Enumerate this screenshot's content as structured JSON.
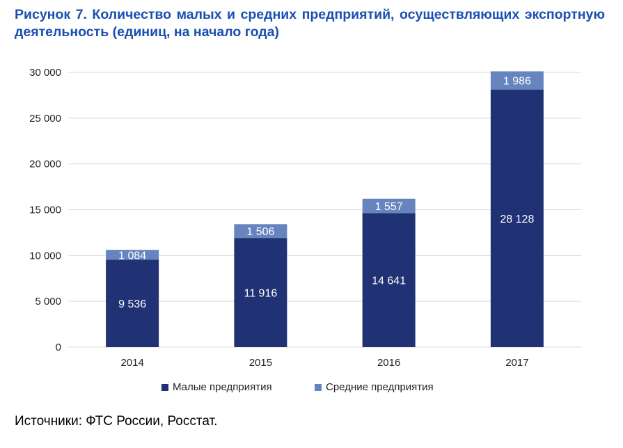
{
  "chart_data": {
    "type": "bar",
    "stacked": true,
    "title": "Рисунок 7. Количество малых и средних предприятий, осуществляющих экспортную деятельность (единиц, на начало года)",
    "categories": [
      "2014",
      "2015",
      "2016",
      "2017"
    ],
    "series": [
      {
        "name": "Малые предприятия",
        "values": [
          9536,
          11916,
          14641,
          28128
        ],
        "color": "#203174",
        "labels": [
          "9 536",
          "11 916",
          "14 641",
          "28 128"
        ]
      },
      {
        "name": "Средние предприятия",
        "values": [
          1084,
          1506,
          1557,
          1986
        ],
        "color": "#6684be",
        "labels": [
          "1 084",
          "1 506",
          "1 557",
          "1 986"
        ]
      }
    ],
    "ylim": [
      0,
      30000
    ],
    "yticks": [
      0,
      5000,
      10000,
      15000,
      20000,
      25000,
      30000
    ],
    "ytick_labels": [
      "0",
      "5 000",
      "10 000",
      "15 000",
      "20 000",
      "25 000",
      "30 000"
    ],
    "grid": true,
    "legend": "bottom",
    "xlabel": "",
    "ylabel": ""
  },
  "source": "Источники: ФТС России, Росстат."
}
